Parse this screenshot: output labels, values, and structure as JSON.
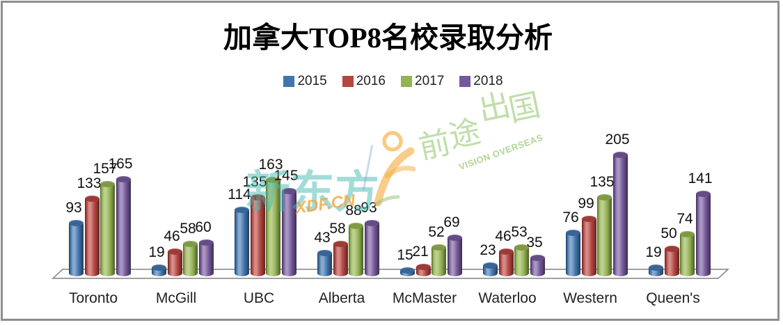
{
  "title": "加拿大TOP8名校录取分析",
  "chart_data": {
    "type": "bar",
    "style": "3d-cylinder",
    "categories": [
      "Toronto",
      "McGill",
      "UBC",
      "Alberta",
      "McMaster",
      "Waterloo",
      "Western",
      "Queen's"
    ],
    "series": [
      {
        "name": "2015",
        "color": "#4175AE",
        "values": [
          93,
          19,
          114,
          43,
          15,
          23,
          76,
          19
        ]
      },
      {
        "name": "2016",
        "color": "#B64540",
        "values": [
          133,
          46,
          135,
          58,
          21,
          46,
          99,
          50
        ]
      },
      {
        "name": "2017",
        "color": "#94B351",
        "values": [
          157,
          58,
          163,
          88,
          52,
          53,
          135,
          74
        ]
      },
      {
        "name": "2018",
        "color": "#74589B",
        "values": [
          165,
          60,
          145,
          93,
          69,
          35,
          205,
          141
        ]
      }
    ],
    "ylim": [
      0,
      220
    ],
    "legend_position": "top",
    "data_labels": true,
    "grid": false
  },
  "watermark": {
    "brand_left": "新东方",
    "brand_left_sub": "XDF.CN",
    "brand_right": "前途出国",
    "brand_right_sub": "VISION OVERSEAS"
  },
  "colors": {
    "frame_border": "#8e8e8e",
    "floor_stroke": "#808080",
    "watermark_teal": "#46B9B1",
    "watermark_orange": "#F5A43C",
    "watermark_green": "#A7D18B"
  }
}
